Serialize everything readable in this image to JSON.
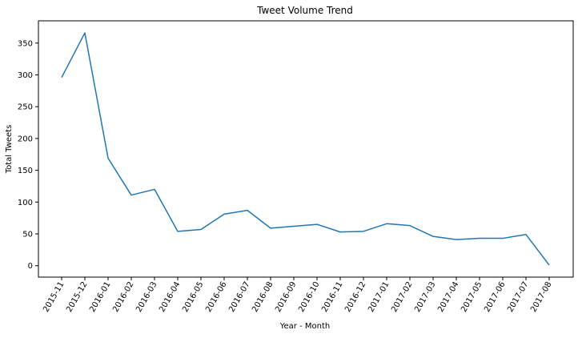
{
  "chart_data": {
    "type": "line",
    "title": "Tweet Volume Trend",
    "xlabel": "Year - Month",
    "ylabel": "Total Tweets",
    "ylim": [
      -18,
      385
    ],
    "yticks": [
      0,
      50,
      100,
      150,
      200,
      250,
      300,
      350
    ],
    "grid": false,
    "legend": "none",
    "categories": [
      "2015-11",
      "2015-12",
      "2016-01",
      "2016-02",
      "2016-03",
      "2016-04",
      "2016-05",
      "2016-06",
      "2016-07",
      "2016-08",
      "2016-09",
      "2016-10",
      "2016-11",
      "2016-12",
      "2017-01",
      "2017-02",
      "2017-03",
      "2017-04",
      "2017-05",
      "2017-06",
      "2017-07",
      "2017-08"
    ],
    "series": [
      {
        "color": "#1f77b4",
        "values": [
          296,
          366,
          169,
          111,
          120,
          54,
          57,
          81,
          87,
          59,
          62,
          65,
          53,
          54,
          66,
          63,
          46,
          41,
          43,
          43,
          49,
          1
        ]
      }
    ]
  }
}
